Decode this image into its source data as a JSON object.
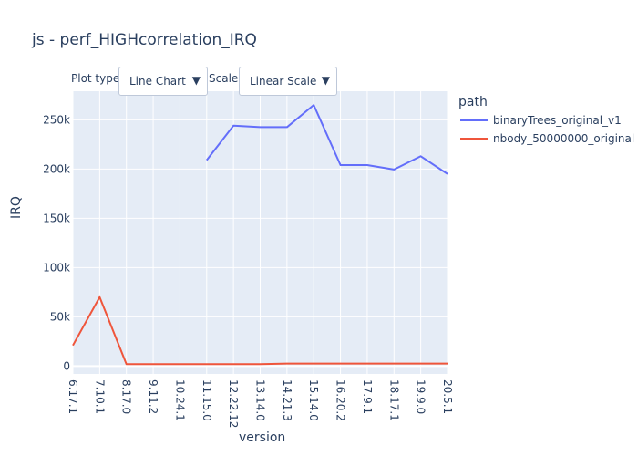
{
  "title": "js - perf_HIGHcorrelation_IRQ",
  "controls": {
    "plot_type_label": "Plot type:",
    "plot_type_value": "Line Chart",
    "scale_label": "Scale:",
    "scale_value": "Linear Scale",
    "dropdown_arrow": "▼"
  },
  "legend": {
    "title": "path"
  },
  "colors": {
    "plot_bg": "#e5ecf6",
    "grid": "#ffffff",
    "series1": "#636efa",
    "series2": "#ef553b"
  },
  "chart_data": {
    "type": "line",
    "xlabel": "version",
    "ylabel": "IRQ",
    "categories": [
      "6.17.1",
      "7.10.1",
      "8.17.0",
      "9.11.2",
      "10.24.1",
      "11.15.0",
      "12.22.12",
      "13.14.0",
      "14.21.3",
      "15.14.0",
      "16.20.2",
      "17.9.1",
      "18.17.1",
      "19.9.0",
      "20.5.1"
    ],
    "yticks": [
      0,
      50000,
      100000,
      150000,
      200000,
      250000
    ],
    "ytick_labels": [
      "0",
      "50k",
      "100k",
      "150k",
      "200k",
      "250k"
    ],
    "ylim": [
      -8000,
      279000
    ],
    "grid": true,
    "legend_position": "top-right",
    "series": [
      {
        "name": "binaryTrees_original_v1",
        "values": [
          null,
          null,
          null,
          null,
          null,
          209000,
          244000,
          242500,
          242500,
          265000,
          204000,
          204000,
          199500,
          213000,
          195000
        ]
      },
      {
        "name": "nbody_50000000_original",
        "values": [
          21000,
          70000,
          2000,
          2000,
          2000,
          2000,
          2000,
          2000,
          2500,
          2500,
          2500,
          2500,
          2500,
          2500,
          2500
        ]
      }
    ]
  }
}
